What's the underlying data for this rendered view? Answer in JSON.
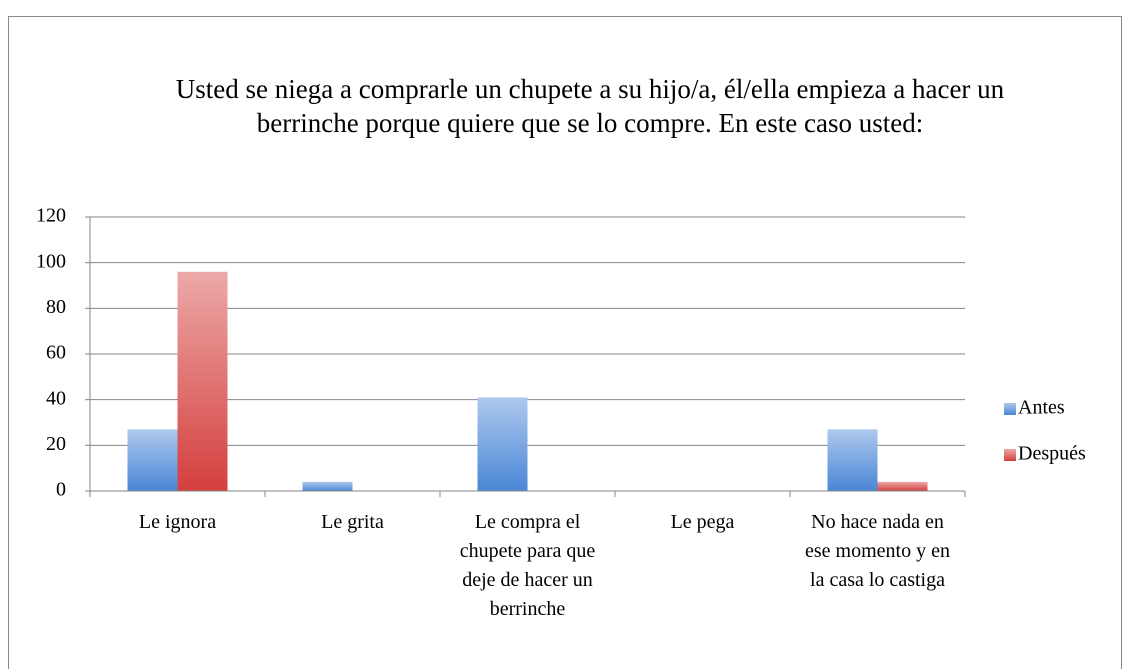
{
  "chart_data": {
    "type": "bar",
    "title": "Usted se niega a comprarle un chupete a su hijo/a, él/ella empieza a hacer un berrinche porque quiere que se lo compre. En este caso usted:",
    "categories": [
      "Le ignora",
      "Le grita",
      "Le compra el chupete para que deje de hacer un berrinche",
      "Le pega",
      "No hace nada en ese momento y en la casa lo castiga"
    ],
    "series": [
      {
        "name": "Antes",
        "color": "#4a86d6",
        "values": [
          27,
          4,
          41,
          0,
          27
        ]
      },
      {
        "name": "Después",
        "color": "#d43f3d",
        "values": [
          96,
          0,
          0,
          0,
          4
        ]
      }
    ],
    "ylim": [
      0,
      120
    ],
    "yticks": [
      0,
      20,
      40,
      60,
      80,
      100,
      120
    ],
    "grid": true,
    "legend": "right"
  }
}
